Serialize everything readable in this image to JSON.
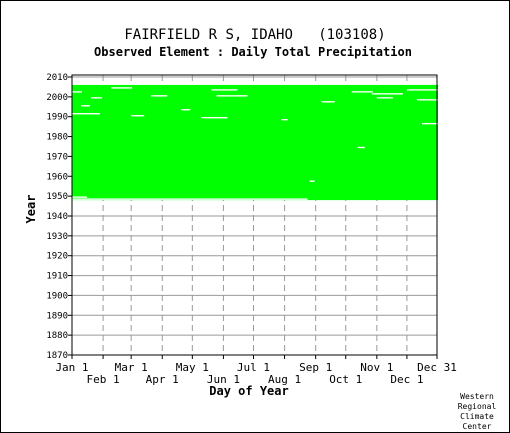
{
  "chart_data": {
    "type": "heatmap",
    "title": "FAIRFIELD R S, IDAHO   (103108)",
    "subtitle": "Observed Element : Daily Total Precipitation",
    "xlabel": "Day of Year",
    "ylabel": "Year",
    "xlim": [
      1,
      365
    ],
    "ylim": [
      1870,
      2011
    ],
    "x_ticks_top": [
      {
        "label": "Jan 1",
        "day": 1
      },
      {
        "label": "Mar 1",
        "day": 60
      },
      {
        "label": "May 1",
        "day": 121
      },
      {
        "label": "Jul 1",
        "day": 182
      },
      {
        "label": "Sep 1",
        "day": 244
      },
      {
        "label": "Nov 1",
        "day": 305
      },
      {
        "label": "Dec 31",
        "day": 365
      }
    ],
    "x_ticks_bottom": [
      {
        "label": "Feb 1",
        "day": 32
      },
      {
        "label": "Apr 1",
        "day": 91
      },
      {
        "label": "Jun 1",
        "day": 152
      },
      {
        "label": "Aug 1",
        "day": 213
      },
      {
        "label": "Oct 1",
        "day": 274
      },
      {
        "label": "Dec 1",
        "day": 335
      }
    ],
    "y_ticks": [
      2010,
      2000,
      1990,
      1980,
      1970,
      1960,
      1950,
      1940,
      1930,
      1920,
      1910,
      1900,
      1890,
      1880,
      1870
    ],
    "series": [
      {
        "values": {
          "year_start": 1948,
          "year_end": 2005,
          "day_start": 1,
          "day_end": 365
        }
      }
    ],
    "missing_segments": [
      {
        "year": 2004,
        "day_start": 40,
        "day_end": 60
      },
      {
        "year": 2003,
        "day_start": 140,
        "day_end": 165
      },
      {
        "year": 2003,
        "day_start": 335,
        "day_end": 365
      },
      {
        "year": 2002,
        "day_start": 1,
        "day_end": 10
      },
      {
        "year": 2002,
        "day_start": 280,
        "day_end": 300
      },
      {
        "year": 2001,
        "day_start": 300,
        "day_end": 330
      },
      {
        "year": 2000,
        "day_start": 80,
        "day_end": 95
      },
      {
        "year": 2000,
        "day_start": 145,
        "day_end": 175
      },
      {
        "year": 1999,
        "day_start": 20,
        "day_end": 30
      },
      {
        "year": 1999,
        "day_start": 305,
        "day_end": 320
      },
      {
        "year": 1998,
        "day_start": 345,
        "day_end": 365
      },
      {
        "year": 1997,
        "day_start": 250,
        "day_end": 262
      },
      {
        "year": 1995,
        "day_start": 10,
        "day_end": 18
      },
      {
        "year": 1993,
        "day_start": 110,
        "day_end": 118
      },
      {
        "year": 1991,
        "day_start": 1,
        "day_end": 28
      },
      {
        "year": 1990,
        "day_start": 60,
        "day_end": 72
      },
      {
        "year": 1989,
        "day_start": 130,
        "day_end": 155
      },
      {
        "year": 1988,
        "day_start": 210,
        "day_end": 215
      },
      {
        "year": 1986,
        "day_start": 350,
        "day_end": 365
      },
      {
        "year": 1974,
        "day_start": 286,
        "day_end": 292
      },
      {
        "year": 1957,
        "day_start": 238,
        "day_end": 242
      },
      {
        "year": 1948,
        "day_start": 1,
        "day_end": 235
      },
      {
        "year": 1949,
        "day_start": 1,
        "day_end": 15
      }
    ],
    "colors": {
      "data": "#00ff00",
      "missing": "#ffffff",
      "grid": "#999999",
      "axis": "#000000"
    },
    "grid": true
  },
  "footer": {
    "lines": [
      "Western",
      "Regional",
      "Climate",
      "Center"
    ]
  }
}
